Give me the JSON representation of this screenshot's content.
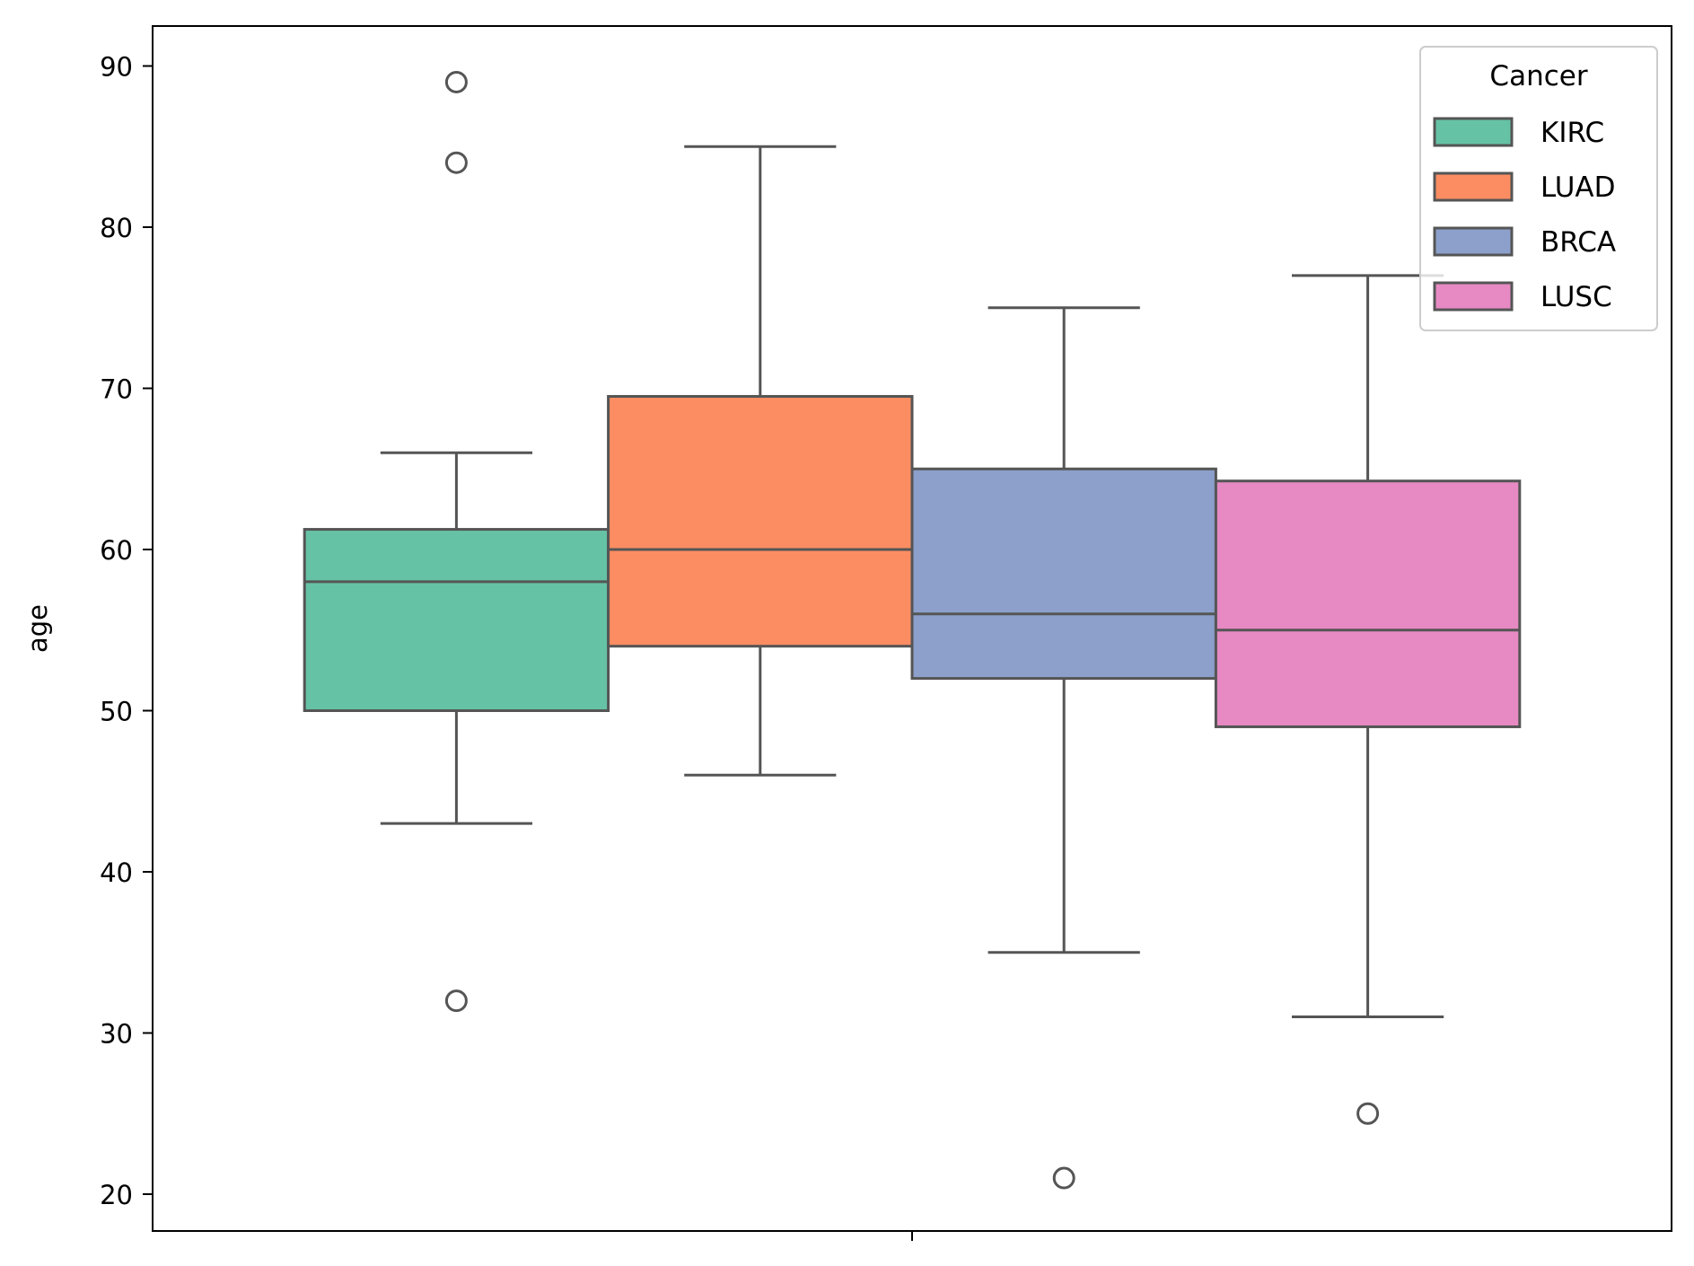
{
  "chart_data": {
    "type": "box",
    "ylabel": "age",
    "xlabel": "",
    "ylim": [
      18,
      92.5
    ],
    "yticks": [
      20,
      30,
      40,
      50,
      60,
      70,
      80,
      90
    ],
    "grid": false,
    "legend": {
      "title": "Cancer",
      "placement": "top-right"
    },
    "series": [
      {
        "name": "KIRC",
        "color": "#66c2a5",
        "q1": 50,
        "median": 58,
        "q3": 61.25,
        "whisker_low": 43,
        "whisker_high": 66,
        "outliers": [
          89,
          84,
          32
        ]
      },
      {
        "name": "LUAD",
        "color": "#fc8d62",
        "q1": 54,
        "median": 60,
        "q3": 69.5,
        "whisker_low": 46,
        "whisker_high": 85,
        "outliers": []
      },
      {
        "name": "BRCA",
        "color": "#8da0cb",
        "q1": 52,
        "median": 56,
        "q3": 65,
        "whisker_low": 35,
        "whisker_high": 75,
        "outliers": [
          21
        ]
      },
      {
        "name": "LUSC",
        "color": "#e78ac3",
        "q1": 49,
        "median": 55,
        "q3": 64.25,
        "whisker_low": 31,
        "whisker_high": 77,
        "outliers": [
          25
        ]
      }
    ]
  }
}
